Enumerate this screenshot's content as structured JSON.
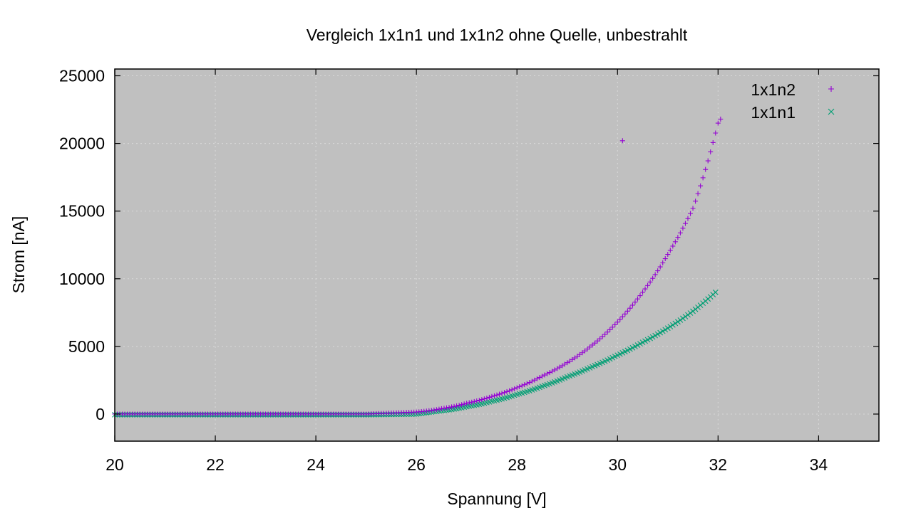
{
  "chart_data": {
    "type": "scatter",
    "title": "Vergleich 1x1n1 und 1x1n2 ohne Quelle, unbestrahlt",
    "xlabel": "Spannung [V]",
    "ylabel": "Strom [nA]",
    "xlim": [
      20,
      35.2
    ],
    "ylim": [
      -2000,
      25500
    ],
    "x_ticks": [
      20,
      22,
      24,
      26,
      28,
      30,
      32,
      34
    ],
    "y_ticks": [
      0,
      5000,
      10000,
      15000,
      20000,
      25000
    ],
    "grid": true,
    "legend_position": "top-right",
    "plot_background": "#c0c0c0",
    "series": [
      {
        "name": "1x1n2",
        "marker": "plus",
        "color": "#9400d3",
        "x_start": 20,
        "x_end": 32.05,
        "x_step": 0.05,
        "curve": [
          [
            20,
            0
          ],
          [
            25,
            0
          ],
          [
            26,
            150
          ],
          [
            26.5,
            400
          ],
          [
            27,
            800
          ],
          [
            27.5,
            1300
          ],
          [
            28,
            1950
          ],
          [
            28.5,
            2800
          ],
          [
            29,
            3800
          ],
          [
            29.5,
            5100
          ],
          [
            30,
            6800
          ],
          [
            30.5,
            9000
          ],
          [
            31,
            11800
          ],
          [
            31.5,
            15200
          ],
          [
            32,
            21500
          ],
          [
            32.05,
            21800
          ]
        ],
        "outliers": [
          [
            30.1,
            20200
          ]
        ]
      },
      {
        "name": "1x1n1",
        "marker": "cross",
        "color": "#009e73",
        "x_start": 20,
        "x_end": 31.95,
        "x_step": 0.05,
        "curve": [
          [
            20,
            -50
          ],
          [
            25,
            -50
          ],
          [
            26,
            0
          ],
          [
            26.5,
            250
          ],
          [
            27,
            550
          ],
          [
            27.5,
            950
          ],
          [
            28,
            1450
          ],
          [
            28.5,
            2050
          ],
          [
            29,
            2750
          ],
          [
            29.5,
            3500
          ],
          [
            30,
            4350
          ],
          [
            30.5,
            5300
          ],
          [
            31,
            6350
          ],
          [
            31.5,
            7600
          ],
          [
            31.95,
            9000
          ]
        ],
        "outliers": []
      }
    ]
  }
}
